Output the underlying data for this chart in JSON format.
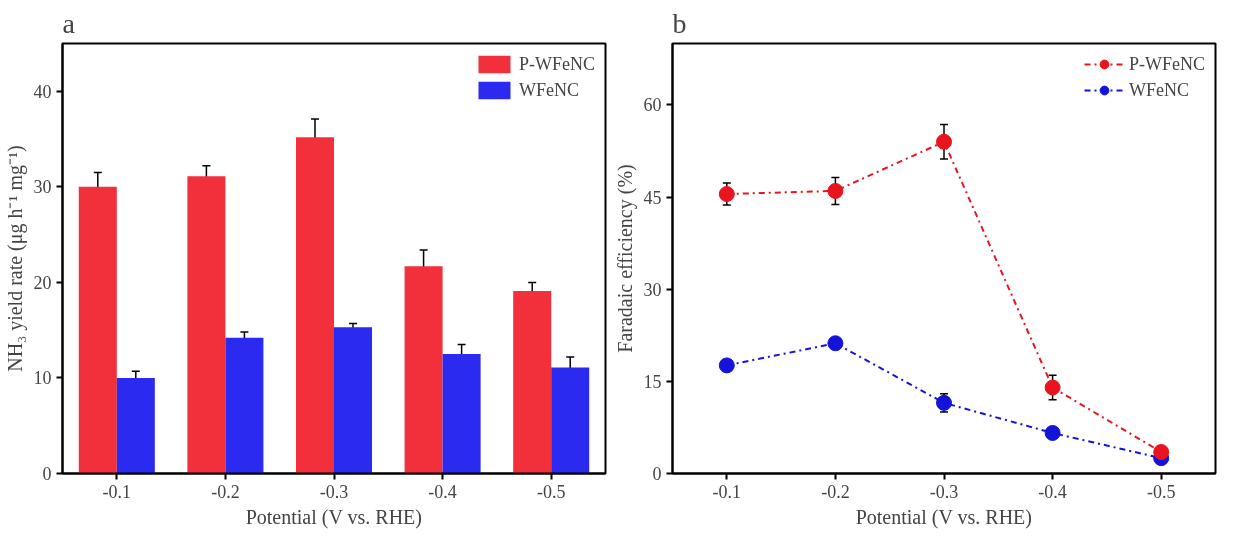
{
  "chart_data": [
    {
      "type": "bar",
      "title": "a",
      "xlabel": "Potential (V vs. RHE)",
      "ylabel": "NH₃ yield rate (μg h⁻¹ mg⁻¹)",
      "categories": [
        "-0.1",
        "-0.2",
        "-0.3",
        "-0.4",
        "-0.5"
      ],
      "ylim": [
        0,
        45
      ],
      "yticks": [
        0,
        10,
        20,
        30,
        40
      ],
      "grid": false,
      "legend": "top right",
      "series": [
        {
          "name": "P-WFeNC",
          "color": "#f2303c",
          "values": [
            30.0,
            31.1,
            35.2,
            21.7,
            19.1
          ],
          "errors": [
            1.5,
            1.1,
            1.9,
            1.7,
            0.9
          ]
        },
        {
          "name": "WFeNC",
          "color": "#2a2af0",
          "values": [
            10.0,
            14.2,
            15.3,
            12.5,
            11.1
          ],
          "errors": [
            0.7,
            0.6,
            0.4,
            1.0,
            1.1
          ]
        }
      ]
    },
    {
      "type": "line",
      "title": "b",
      "xlabel": "Potential (V vs. RHE)",
      "ylabel": "Faradaic efficiency (%)",
      "x": [
        -0.1,
        -0.2,
        -0.3,
        -0.4,
        -0.5
      ],
      "xlim": [
        -0.05,
        -0.55
      ],
      "xticks": [
        -0.1,
        -0.2,
        -0.3,
        -0.4,
        -0.5
      ],
      "ylim": [
        0,
        70
      ],
      "yticks": [
        0,
        15,
        30,
        45,
        60
      ],
      "grid": false,
      "legend": "top right",
      "marker": "circle",
      "line_style": "dashdot",
      "series": [
        {
          "name": "P-WFeNC",
          "color": "#e8141e",
          "values": [
            45.5,
            46.0,
            54.0,
            14.0,
            3.5
          ],
          "errors": [
            1.8,
            2.2,
            2.8,
            2.0,
            null
          ]
        },
        {
          "name": "WFeNC",
          "color": "#1414d8",
          "values": [
            17.6,
            21.2,
            11.5,
            6.6,
            2.5
          ],
          "errors": [
            null,
            null,
            1.5,
            null,
            null
          ]
        }
      ]
    }
  ]
}
